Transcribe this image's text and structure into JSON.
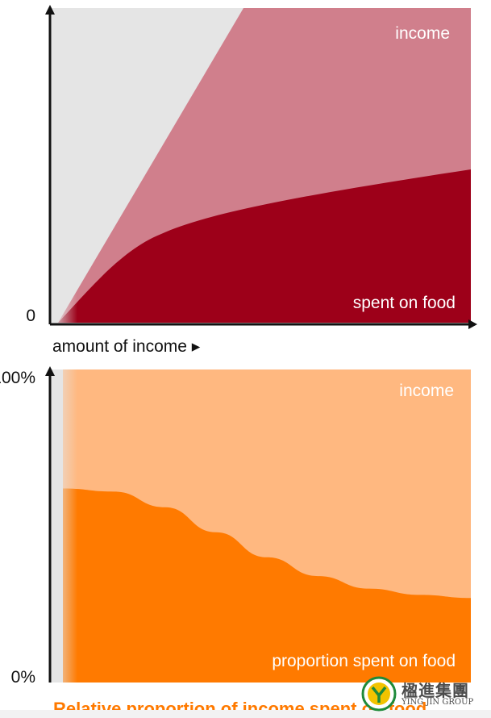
{
  "chart_data": [
    {
      "type": "area",
      "title": "",
      "xlabel": "amount of income ▸",
      "ylabel": "",
      "y_tick_labels": [
        "0"
      ],
      "series": [
        {
          "name": "income",
          "shape": "linear",
          "color": "#d07f8c"
        },
        {
          "name": "spent on food",
          "shape": "concave, flattening",
          "color": "#9d0019"
        }
      ],
      "colors": {
        "background": "#e5e5e5",
        "axis": "#111111",
        "label": "#ffffff"
      }
    },
    {
      "type": "area",
      "title": "Relative proportion of income spent on food",
      "xlabel": "",
      "ylabel": "",
      "y_tick_labels": [
        "100%",
        "0%"
      ],
      "ylim": [
        0,
        100
      ],
      "series": [
        {
          "name": "income",
          "values_pct": [
            100,
            100
          ],
          "color": "#ffb880"
        },
        {
          "name": "proportion spent on food",
          "values_pct": [
            62,
            61,
            56,
            48,
            40,
            34,
            30,
            28,
            27
          ],
          "color": "#ff7a00"
        }
      ],
      "colors": {
        "background": "#e5e5e5",
        "axis": "#111111",
        "label": "#ffffff",
        "title": "#ff7a00"
      }
    }
  ],
  "watermark": {
    "text_cn": "楹進集團",
    "text_en": "YING JIN GROUP"
  }
}
